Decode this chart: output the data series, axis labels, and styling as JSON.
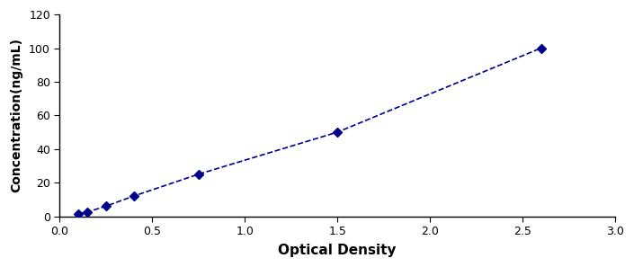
{
  "x": [
    0.1,
    0.15,
    0.25,
    0.4,
    0.75,
    1.5,
    2.6
  ],
  "y": [
    1.5,
    2.5,
    6.0,
    12.0,
    25.0,
    50.0,
    100.0
  ],
  "xlabel": "Optical Density",
  "ylabel": "Concentration(ng/mL)",
  "xlim": [
    0,
    3
  ],
  "ylim": [
    0,
    120
  ],
  "xticks": [
    0,
    0.5,
    1,
    1.5,
    2,
    2.5,
    3
  ],
  "yticks": [
    0,
    20,
    40,
    60,
    80,
    100,
    120
  ],
  "line_color": "#00008B",
  "marker": "D",
  "marker_size": 5,
  "line_width": 1.2,
  "background_color": "#ffffff",
  "xlabel_fontsize": 11,
  "ylabel_fontsize": 10,
  "tick_fontsize": 9
}
